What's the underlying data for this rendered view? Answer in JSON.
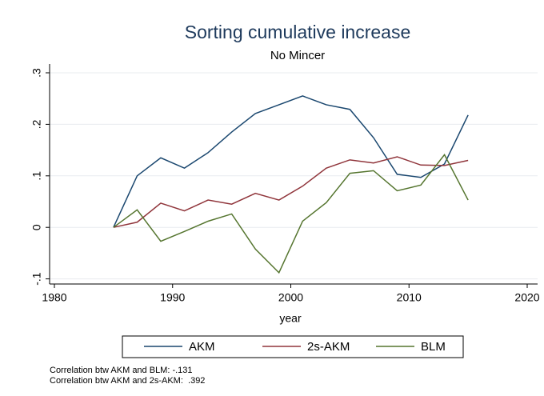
{
  "chart_data": {
    "type": "line",
    "title": "Sorting cumulative increase",
    "subtitle": "No Mincer",
    "xlabel": "year",
    "x": [
      1985,
      1987,
      1989,
      1991,
      1993,
      1995,
      1997,
      1999,
      2001,
      2003,
      2005,
      2007,
      2009,
      2011,
      2013,
      2015
    ],
    "series": [
      {
        "name": "AKM",
        "color": "#1a476f",
        "values": [
          0,
          0.1,
          0.135,
          0.115,
          0.145,
          0.185,
          0.221,
          0.238,
          0.255,
          0.238,
          0.229,
          0.174,
          0.103,
          0.097,
          0.123,
          0.218
        ]
      },
      {
        "name": "2s-AKM",
        "color": "#90353b",
        "values": [
          0,
          0.01,
          0.047,
          0.032,
          0.053,
          0.045,
          0.066,
          0.053,
          0.08,
          0.115,
          0.131,
          0.125,
          0.137,
          0.121,
          0.12,
          0.13
        ]
      },
      {
        "name": "BLM",
        "color": "#55752f",
        "values": [
          0,
          0.034,
          -0.027,
          -0.008,
          0.012,
          0.026,
          -0.042,
          -0.088,
          0.012,
          0.048,
          0.105,
          0.11,
          0.071,
          0.082,
          0.141,
          0.053
        ]
      }
    ],
    "xlim": [
      1980,
      2020
    ],
    "xticks": [
      1980,
      1990,
      2000,
      2010,
      2020
    ],
    "ylim": [
      -0.1,
      0.3
    ],
    "yticks": [
      {
        "value": -0.1,
        "label": "-.1"
      },
      0,
      {
        "value": 0.1,
        "label": ".1"
      },
      {
        "value": 0.2,
        "label": ".2"
      },
      {
        "value": 0.3,
        "label": ".3"
      }
    ],
    "grid": true,
    "notes": [
      "Correlation btw AKM and BLM: -.131",
      "Correlation btw AKM and 2s-AKM:  .392"
    ]
  }
}
